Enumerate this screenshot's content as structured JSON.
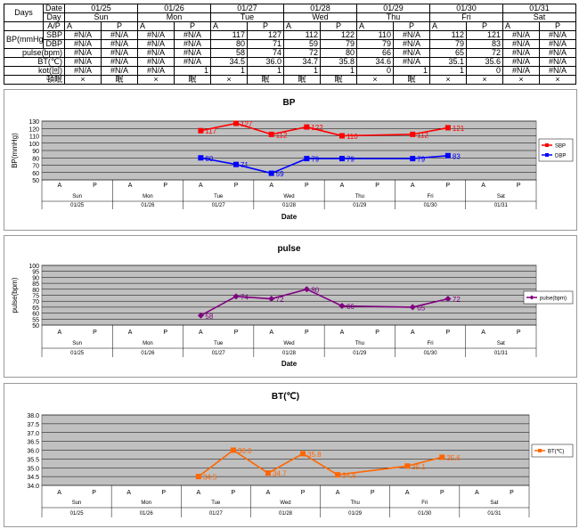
{
  "sheet": {
    "days_label": "Days",
    "row_labels": {
      "date": "Date",
      "day": "Day",
      "ap": "A/P",
      "bp": "BP(mmHg)",
      "sbp": "SBP",
      "dbp": "DBP",
      "pulse": "pulse(bpm)",
      "bt": "BT(℃)",
      "kot": "kot(回)",
      "sleep": "頓眠"
    },
    "dates": [
      "01/25",
      "01/26",
      "01/27",
      "01/28",
      "01/29",
      "01/30",
      "01/31"
    ],
    "days": [
      "Sun",
      "Mon",
      "Tue",
      "Wed",
      "Thu",
      "Fri",
      "Sat"
    ],
    "ap": [
      "A",
      "P",
      "A",
      "P",
      "A",
      "P",
      "A",
      "P",
      "A",
      "P",
      "A",
      "P",
      "A",
      "P"
    ],
    "sbp": [
      "#N/A",
      "#N/A",
      "#N/A",
      "#N/A",
      "117",
      "127",
      "112",
      "122",
      "110",
      "#N/A",
      "112",
      "121",
      "#N/A",
      "#N/A"
    ],
    "dbp": [
      "#N/A",
      "#N/A",
      "#N/A",
      "#N/A",
      "80",
      "71",
      "59",
      "79",
      "79",
      "#N/A",
      "79",
      "83",
      "#N/A",
      "#N/A"
    ],
    "pulse": [
      "#N/A",
      "#N/A",
      "#N/A",
      "#N/A",
      "58",
      "74",
      "72",
      "80",
      "66",
      "#N/A",
      "65",
      "72",
      "#N/A",
      "#N/A"
    ],
    "bt": [
      "#N/A",
      "#N/A",
      "#N/A",
      "#N/A",
      "34.5",
      "36.0",
      "34.7",
      "35.8",
      "34.6",
      "#N/A",
      "35.1",
      "35.6",
      "#N/A",
      "#N/A"
    ],
    "kot": [
      "#N/A",
      "#N/A",
      "#N/A",
      "1",
      "1",
      "1",
      "1",
      "1",
      "0",
      "1",
      "1",
      "0",
      "#N/A",
      "#N/A"
    ],
    "sleep": [
      "×",
      "眠",
      "×",
      "眠",
      "×",
      "眠",
      "眠",
      "眠",
      "×",
      "眠",
      "×",
      "×",
      "×",
      "×"
    ]
  },
  "chart_data": [
    {
      "type": "line",
      "title": "BP",
      "xlabel": "Date",
      "ylabel": "BP(mmHg)",
      "ylim": [
        50,
        130
      ],
      "yticks": [
        50,
        60,
        70,
        80,
        90,
        100,
        110,
        120,
        130
      ],
      "categories": [
        "A",
        "P",
        "A",
        "P",
        "A",
        "P",
        "A",
        "P",
        "A",
        "P",
        "A",
        "P",
        "A",
        "P"
      ],
      "day_labels": [
        "Sun",
        "Mon",
        "Tue",
        "Wed",
        "Thu",
        "Fri",
        "Sat"
      ],
      "date_labels": [
        "01/25",
        "01/26",
        "01/27",
        "01/28",
        "01/29",
        "01/30",
        "01/31"
      ],
      "legend_position": "right",
      "series": [
        {
          "name": "SBP",
          "color": "#ff0000",
          "marker": "square",
          "values": [
            null,
            null,
            null,
            null,
            117,
            127,
            112,
            122,
            110,
            null,
            112,
            121,
            null,
            null
          ]
        },
        {
          "name": "DBP",
          "color": "#0000ff",
          "marker": "square",
          "values": [
            null,
            null,
            null,
            null,
            80,
            71,
            59,
            79,
            79,
            null,
            79,
            83,
            null,
            null
          ]
        }
      ]
    },
    {
      "type": "line",
      "title": "pulse",
      "xlabel": "Date",
      "ylabel": "pulse(bpm)",
      "ylim": [
        50,
        100
      ],
      "yticks": [
        50,
        55,
        60,
        65,
        70,
        75,
        80,
        85,
        90,
        95,
        100
      ],
      "categories": [
        "A",
        "P",
        "A",
        "P",
        "A",
        "P",
        "A",
        "P",
        "A",
        "P",
        "A",
        "P",
        "A",
        "P"
      ],
      "day_labels": [
        "Sun",
        "Mon",
        "Tue",
        "Wed",
        "Thu",
        "Fri",
        "Sat"
      ],
      "date_labels": [
        "01/25",
        "01/26",
        "01/27",
        "01/28",
        "01/29",
        "01/30",
        "01/31"
      ],
      "legend_position": "right",
      "series": [
        {
          "name": "pulse(bpm)",
          "color": "#800080",
          "marker": "diamond",
          "values": [
            null,
            null,
            null,
            null,
            58,
            74,
            72,
            80,
            66,
            null,
            65,
            72,
            null,
            null
          ]
        }
      ]
    },
    {
      "type": "line",
      "title": "BT(℃)",
      "xlabel": "",
      "ylabel": "",
      "ylim": [
        34.0,
        38.0
      ],
      "yticks": [
        34.0,
        34.5,
        35.0,
        35.5,
        36.0,
        36.5,
        37.0,
        37.5,
        38.0
      ],
      "categories": [
        "A",
        "P",
        "A",
        "P",
        "A",
        "P",
        "A",
        "P",
        "A",
        "P",
        "A",
        "P",
        "A",
        "P"
      ],
      "day_labels": [
        "Sun",
        "Mon",
        "Tue",
        "Wed",
        "Thu",
        "Fri",
        "Sat"
      ],
      "date_labels": [
        "01/25",
        "01/26",
        "01/27",
        "01/28",
        "01/29",
        "01/30",
        "01/31"
      ],
      "legend_position": "right",
      "series": [
        {
          "name": "BT(℃)",
          "color": "#ff6600",
          "marker": "square",
          "values": [
            null,
            null,
            null,
            null,
            34.5,
            36.0,
            34.7,
            35.8,
            34.6,
            null,
            35.1,
            35.6,
            null,
            null
          ]
        }
      ]
    }
  ]
}
